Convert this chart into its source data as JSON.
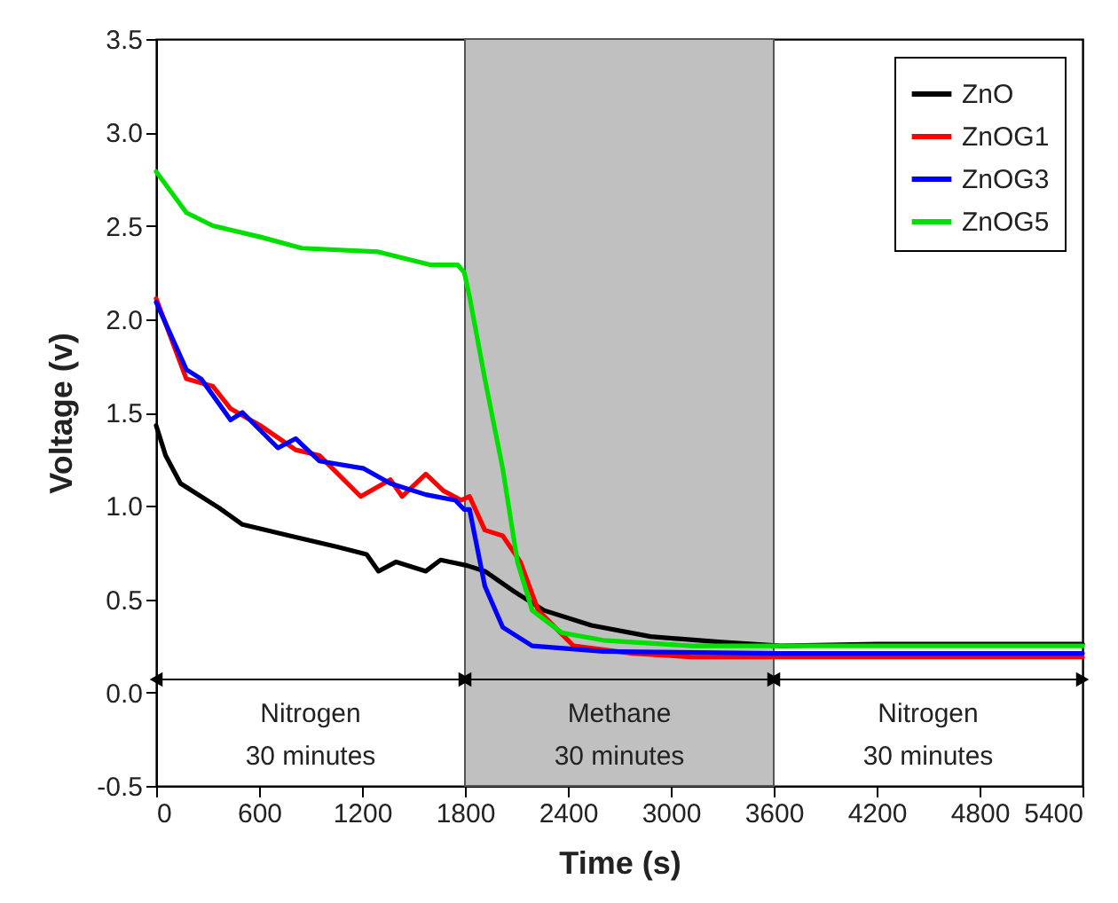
{
  "chart_data": {
    "type": "line",
    "xlabel": "Time (s)",
    "ylabel": "Voltage (v)",
    "xlim": [
      0,
      5400
    ],
    "xticks": [
      0,
      600,
      1200,
      1800,
      2400,
      3000,
      3600,
      4200,
      4800,
      5400
    ],
    "ylim": [
      -0.5,
      3.5
    ],
    "yticks": [
      {
        "value": -0.5,
        "label": "-0.5"
      },
      {
        "value": 0,
        "label": "0.0"
      },
      {
        "value": 0.5,
        "label": "0.5"
      },
      {
        "value": 1,
        "label": "1.0"
      },
      {
        "value": 1.5,
        "label": "1.5"
      },
      {
        "value": 2,
        "label": "2.0"
      },
      {
        "value": 2.5,
        "label": "2.5"
      },
      {
        "value": 3,
        "label": "3.0"
      },
      3.5
    ],
    "legend": "top right",
    "grid": false,
    "marker": "none",
    "line_style": "solid",
    "bands": [
      {
        "axis": "x",
        "from": 1800,
        "to": 3600,
        "color": "#c0c0c0"
      }
    ],
    "annotations": [
      "Nitrogen\n30 minutes",
      "Methane\n30 minutes",
      "Nitrogen\n30 minutes"
    ],
    "series": [
      {
        "name": "ZnO",
        "color": "#000000",
        "x": [
          0,
          55,
          142,
          365,
          503,
          779,
          1055,
          1227,
          1296,
          1399,
          1572,
          1658,
          1813,
          1916,
          2089,
          2261,
          2537,
          2882,
          3295,
          3640,
          4200,
          4800,
          5400
        ],
        "values": [
          1.43,
          1.27,
          1.12,
          0.99,
          0.9,
          0.84,
          0.78,
          0.74,
          0.65,
          0.7,
          0.65,
          0.71,
          0.68,
          0.65,
          0.54,
          0.44,
          0.36,
          0.3,
          0.27,
          0.25,
          0.26,
          0.26,
          0.26
        ]
      },
      {
        "name": "ZnOG1",
        "color": "#ff0000",
        "x": [
          0,
          176,
          331,
          434,
          607,
          813,
          951,
          1192,
          1365,
          1434,
          1572,
          1675,
          1779,
          1827,
          1916,
          2020,
          2123,
          2227,
          2433,
          2778,
          3123,
          3600,
          4200,
          4800,
          5400
        ],
        "values": [
          2.11,
          1.68,
          1.64,
          1.52,
          1.43,
          1.3,
          1.27,
          1.05,
          1.14,
          1.05,
          1.17,
          1.08,
          1.03,
          1.05,
          0.87,
          0.84,
          0.7,
          0.44,
          0.25,
          0.21,
          0.19,
          0.19,
          0.19,
          0.19,
          0.19
        ]
      },
      {
        "name": "ZnOG3",
        "color": "#0000ff",
        "x": [
          0,
          176,
          262,
          434,
          503,
          710,
          813,
          951,
          1210,
          1365,
          1572,
          1744,
          1796,
          1827,
          1916,
          2020,
          2192,
          2606,
          3600,
          4200,
          4800,
          5400
        ],
        "values": [
          2.09,
          1.73,
          1.68,
          1.46,
          1.5,
          1.31,
          1.36,
          1.24,
          1.2,
          1.12,
          1.06,
          1.03,
          0.98,
          0.98,
          0.57,
          0.35,
          0.25,
          0.22,
          0.21,
          0.21,
          0.21,
          0.21
        ]
      },
      {
        "name": "ZnOG5",
        "color": "#00e000",
        "x": [
          0,
          176,
          331,
          607,
          848,
          1295,
          1603,
          1758,
          1796,
          1827,
          1916,
          2020,
          2106,
          2192,
          2365,
          2606,
          3123,
          3600,
          4200,
          4800,
          5400
        ],
        "values": [
          2.79,
          2.57,
          2.5,
          2.44,
          2.38,
          2.36,
          2.29,
          2.29,
          2.25,
          2.12,
          1.68,
          1.2,
          0.7,
          0.44,
          0.32,
          0.28,
          0.25,
          0.25,
          0.25,
          0.25,
          0.25
        ]
      }
    ]
  }
}
